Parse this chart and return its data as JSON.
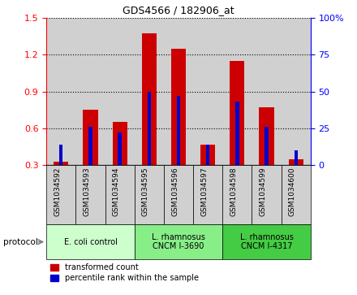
{
  "title": "GDS4566 / 182906_at",
  "samples": [
    "GSM1034592",
    "GSM1034593",
    "GSM1034594",
    "GSM1034595",
    "GSM1034596",
    "GSM1034597",
    "GSM1034598",
    "GSM1034599",
    "GSM1034600"
  ],
  "transformed_count": [
    0.33,
    0.75,
    0.65,
    1.37,
    1.25,
    0.47,
    1.15,
    0.77,
    0.35
  ],
  "percentile_rank": [
    14,
    26,
    22,
    50,
    47,
    14,
    43,
    26,
    10
  ],
  "ylim_left": [
    0.3,
    1.5
  ],
  "ylim_right": [
    0,
    100
  ],
  "yticks_left": [
    0.3,
    0.6,
    0.9,
    1.2,
    1.5
  ],
  "yticks_right": [
    0,
    25,
    50,
    75,
    100
  ],
  "bar_color_red": "#cc0000",
  "bar_color_blue": "#0000cc",
  "background_xtick": "#d0d0d0",
  "protocols": [
    {
      "label": "E. coli control",
      "start": 0,
      "end": 3,
      "color": "#ccffcc"
    },
    {
      "label": "L. rhamnosus\nCNCM I-3690",
      "start": 3,
      "end": 6,
      "color": "#88ee88"
    },
    {
      "label": "L. rhamnosus\nCNCM I-4317",
      "start": 6,
      "end": 9,
      "color": "#44cc44"
    }
  ],
  "legend_red_label": "transformed count",
  "legend_blue_label": "percentile rank within the sample",
  "protocol_label": "protocol",
  "bar_width": 0.5,
  "blue_bar_width": 0.12,
  "base_value": 0.3
}
